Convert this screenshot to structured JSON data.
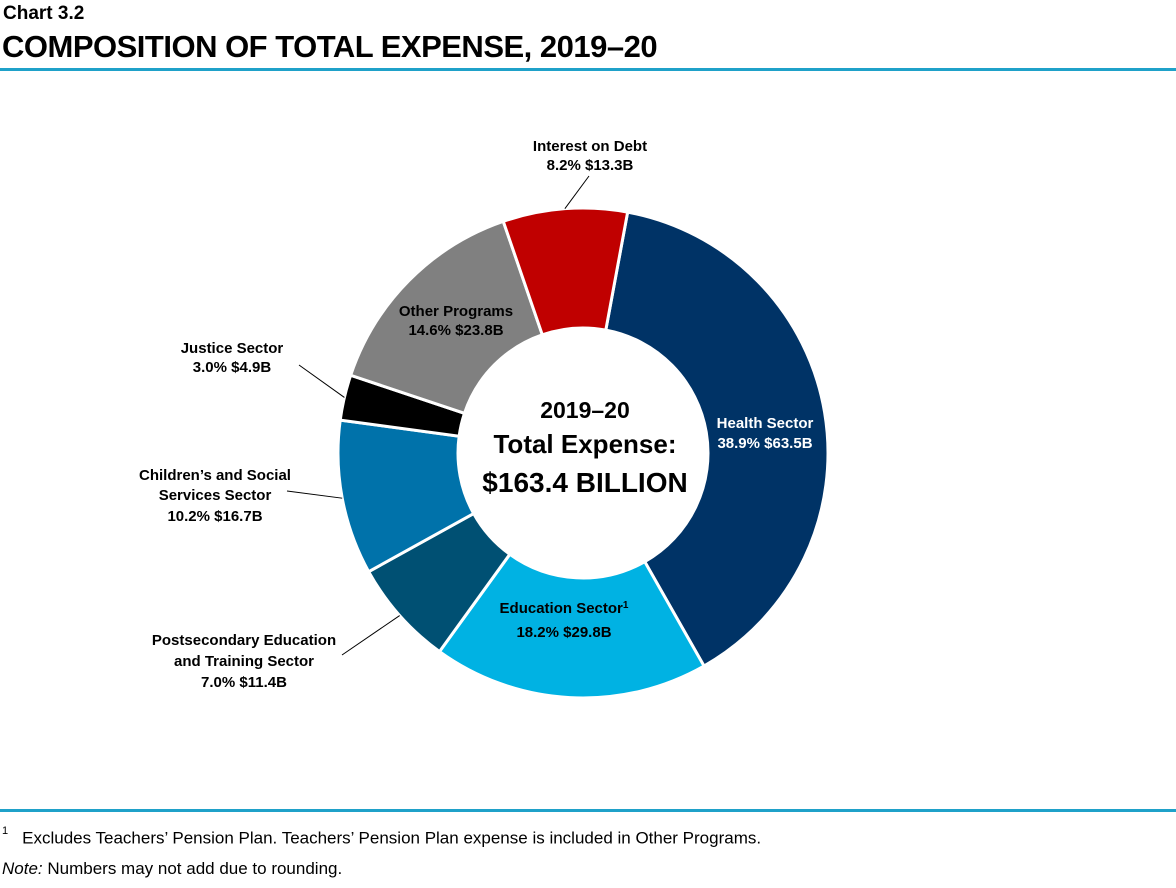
{
  "header": {
    "chart_number": "Chart 3.2",
    "title": "COMPOSITION OF TOTAL EXPENSE, 2019–20"
  },
  "center": {
    "line1": "2019–20",
    "line2": "Total Expense:",
    "line3": "$163.4 BILLION"
  },
  "chart_data": {
    "type": "pie",
    "variant": "donut",
    "title": "COMPOSITION OF TOTAL EXPENSE, 2019–20",
    "total": 163.4,
    "units": "$B",
    "slices": [
      {
        "key": "health",
        "name": "Health Sector",
        "percent": 38.9,
        "value": 63.5,
        "color": "#003366",
        "label_lines": [
          "Health Sector"
        ],
        "value_text": "38.9%  $63.5B",
        "label_placement": "inside"
      },
      {
        "key": "education",
        "name": "Education Sector",
        "footnote_mark": "1",
        "percent": 18.2,
        "value": 29.8,
        "color": "#00b2e3",
        "label_lines": [
          "Education Sector"
        ],
        "value_text": "18.2%  $29.8B",
        "label_placement": "inside"
      },
      {
        "key": "postsecondary",
        "name": "Postsecondary Education and Training Sector",
        "percent": 7.0,
        "value": 11.4,
        "color": "#005073",
        "label_lines": [
          "Postsecondary Education",
          "and Training Sector"
        ],
        "value_text": "7.0%  $11.4B",
        "label_placement": "outside"
      },
      {
        "key": "childrens",
        "name": "Children’s and Social Services Sector",
        "percent": 10.2,
        "value": 16.7,
        "color": "#0072aa",
        "label_lines": [
          "Children’s and Social",
          "Services Sector"
        ],
        "value_text": "10.2%  $16.7B",
        "label_placement": "outside"
      },
      {
        "key": "justice",
        "name": "Justice Sector",
        "percent": 3.0,
        "value": 4.9,
        "color": "#000000",
        "label_lines": [
          "Justice Sector"
        ],
        "value_text": "3.0%  $4.9B",
        "label_placement": "outside"
      },
      {
        "key": "other",
        "name": "Other Programs",
        "percent": 14.6,
        "value": 23.8,
        "color": "#808080",
        "label_lines": [
          "Other Programs"
        ],
        "value_text": "14.6%  $23.8B",
        "label_placement": "inside"
      },
      {
        "key": "interest",
        "name": "Interest on Debt",
        "percent": 8.2,
        "value": 13.3,
        "color": "#c00000",
        "label_lines": [
          "Interest on Debt"
        ],
        "value_text": "8.2%  $13.3B",
        "label_placement": "outside"
      }
    ]
  },
  "footnotes": {
    "mark": "1",
    "text": "Excludes Teachers’ Pension Plan. Teachers’ Pension Plan expense is included in Other Programs.",
    "note_label": "Note:",
    "note_text": " Numbers may not add due to rounding."
  }
}
